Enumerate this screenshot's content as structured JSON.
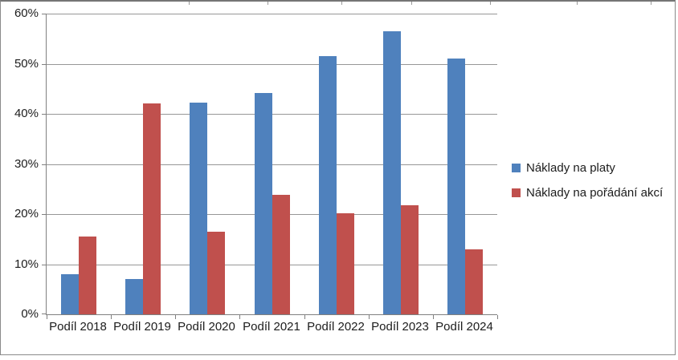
{
  "chart_data": {
    "type": "bar",
    "title": "",
    "categories": [
      "Podíl 2018",
      "Podíl 2019",
      "Podíl 2020",
      "Podíl 2021",
      "Podíl 2022",
      "Podíl 2023",
      "Podíl 2024"
    ],
    "series": [
      {
        "name": "Náklady na platy",
        "color": "#4F81BD",
        "values": [
          8.0,
          7.1,
          42.2,
          44.2,
          51.5,
          56.5,
          51.1
        ]
      },
      {
        "name": "Náklady na pořádání akcí",
        "color": "#C0504D",
        "values": [
          15.5,
          42.0,
          16.4,
          23.8,
          20.1,
          21.7,
          13.0
        ]
      }
    ],
    "ylabel": "",
    "xlabel": "",
    "ylim": [
      0,
      60
    ],
    "ytick_step": 10,
    "ytick_labels": [
      "0%",
      "10%",
      "20%",
      "30%",
      "40%",
      "50%",
      "60%"
    ],
    "grid": true,
    "legend_position": "right"
  },
  "colors": {
    "series_blue": "#4F81BD",
    "series_red": "#C0504D",
    "gridline": "#979797",
    "axis": "#808080",
    "border": "#8a8a8a",
    "text": "#1c1c1c"
  }
}
